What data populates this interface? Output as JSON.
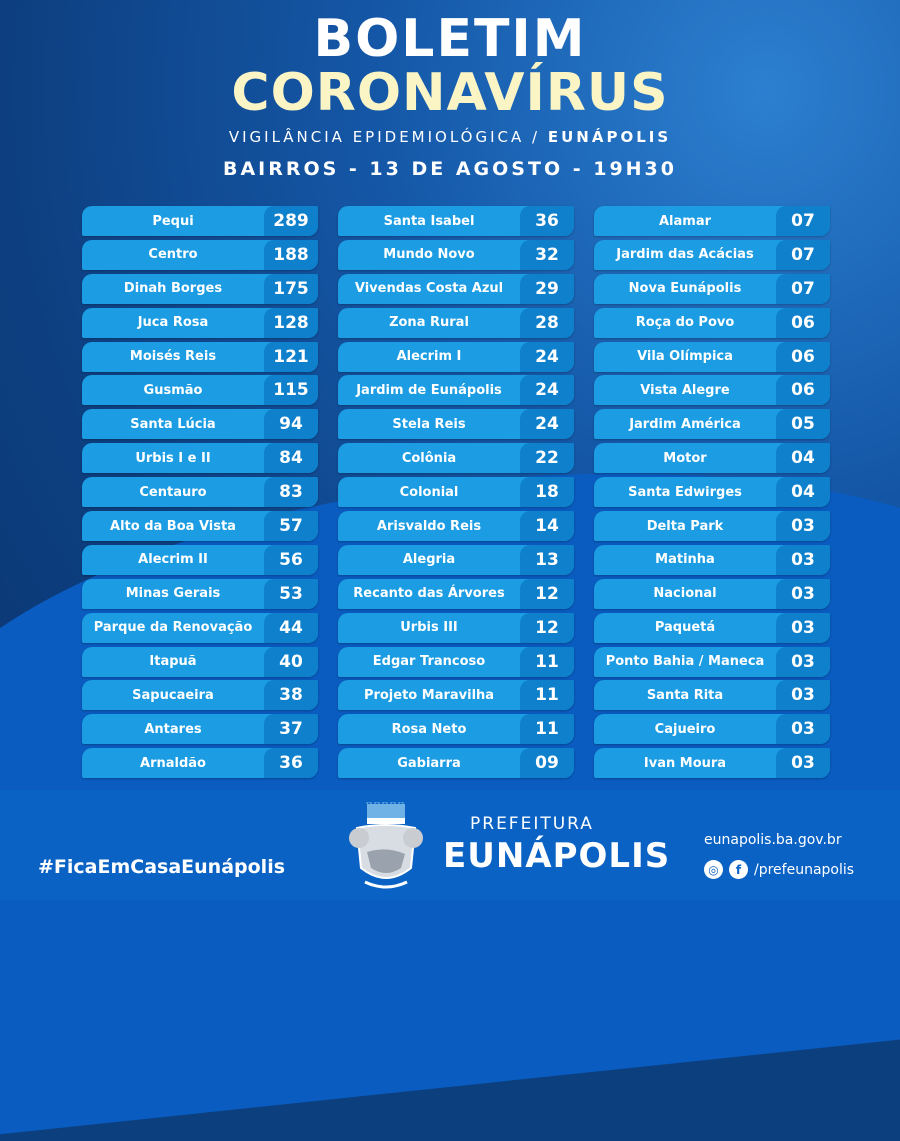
{
  "header": {
    "title_line1": "BOLETIM",
    "title_line2": "CORONAVÍRUS",
    "subtitle": "VIGILÂNCIA EPIDEMIOLÓGICA / ",
    "subtitle_bold": "EUNÁPOLIS",
    "date_line": "BAIRROS - 13 DE AGOSTO - 19H30"
  },
  "columns": [
    [
      [
        "Pequi",
        "289"
      ],
      [
        "Centro",
        "188"
      ],
      [
        "Dinah Borges",
        "175"
      ],
      [
        "Juca Rosa",
        "128"
      ],
      [
        "Moisés Reis",
        "121"
      ],
      [
        "Gusmão",
        "115"
      ],
      [
        "Santa Lúcia",
        "94"
      ],
      [
        "Urbis I e II",
        "84"
      ],
      [
        "Centauro",
        "83"
      ],
      [
        "Alto da Boa Vista",
        "57"
      ],
      [
        "Alecrim II",
        "56"
      ],
      [
        "Minas Gerais",
        "53"
      ],
      [
        "Parque da Renovação",
        "44"
      ],
      [
        "Itapuã",
        "40"
      ],
      [
        "Sapucaeira",
        "38"
      ],
      [
        "Antares",
        "37"
      ],
      [
        "Arnaldão",
        "36"
      ]
    ],
    [
      [
        "Santa Isabel",
        "36"
      ],
      [
        "Mundo Novo",
        "32"
      ],
      [
        "Vivendas Costa Azul",
        "29"
      ],
      [
        "Zona Rural",
        "28"
      ],
      [
        "Alecrim I",
        "24"
      ],
      [
        "Jardim de Eunápolis",
        "24"
      ],
      [
        "Stela Reis",
        "24"
      ],
      [
        "Colônia",
        "22"
      ],
      [
        "Colonial",
        "18"
      ],
      [
        "Arisvaldo Reis",
        "14"
      ],
      [
        "Alegria",
        "13"
      ],
      [
        "Recanto das Árvores",
        "12"
      ],
      [
        "Urbis III",
        "12"
      ],
      [
        "Edgar Trancoso",
        "11"
      ],
      [
        "Projeto Maravilha",
        "11"
      ],
      [
        "Rosa Neto",
        "11"
      ],
      [
        "Gabiarra",
        "09"
      ]
    ],
    [
      [
        "Alamar",
        "07"
      ],
      [
        "Jardim das Acácias",
        "07"
      ],
      [
        "Nova Eunápolis",
        "07"
      ],
      [
        "Roça do Povo",
        "06"
      ],
      [
        "Vila Olímpica",
        "06"
      ],
      [
        "Vista Alegre",
        "06"
      ],
      [
        "Jardim América",
        "05"
      ],
      [
        "Motor",
        "04"
      ],
      [
        "Santa Edwirges",
        "04"
      ],
      [
        "Delta Park",
        "03"
      ],
      [
        "Matinha",
        "03"
      ],
      [
        "Nacional",
        "03"
      ],
      [
        "Paquetá",
        "03"
      ],
      [
        "Ponto Bahia  / Maneca",
        "03"
      ],
      [
        "Santa Rita",
        "03"
      ],
      [
        "Cajueiro",
        "03"
      ],
      [
        "Ivan Moura",
        "03"
      ]
    ]
  ],
  "footer": {
    "hashtag": "#FicaEmCasaEunápolis",
    "prefeitura": "PREFEITURA",
    "city": "EUNÁPOLIS",
    "website": "eunapolis.ba.gov.br",
    "social_handle": "/prefeunapolis",
    "icons": [
      "instagram-icon",
      "facebook-icon"
    ]
  },
  "colors": {
    "row": "#1b9ce3",
    "number_cell": "#0f80cc",
    "title_accent": "#fbf5c6",
    "footer": "#0a62c4"
  }
}
